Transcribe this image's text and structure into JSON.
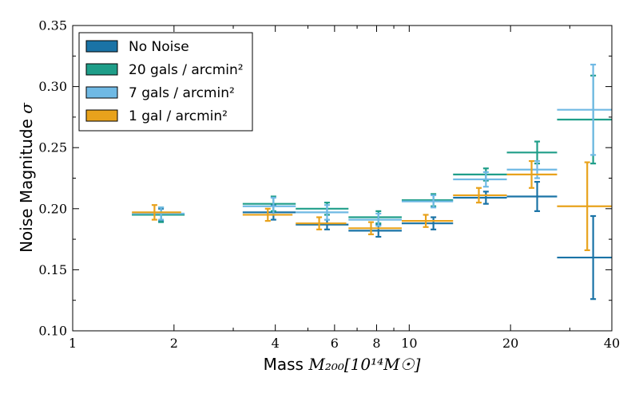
{
  "chart_data": {
    "type": "scatter",
    "title": "",
    "xlabel": "Mass ",
    "xlabel_math": "M₂₀₀[10¹⁴M☉]",
    "ylabel": "Noise Magnitude ",
    "ylabel_math": "σ",
    "xscale": "log",
    "xlim": [
      1,
      40
    ],
    "ylim": [
      0.1,
      0.35
    ],
    "x_ticks": [
      1,
      2,
      4,
      6,
      8,
      10,
      20,
      40
    ],
    "x_tick_labels": [
      "1",
      "2",
      "4",
      "6",
      "8",
      "10",
      "20",
      "40"
    ],
    "y_ticks": [
      0.1,
      0.15,
      0.2,
      0.25,
      0.3,
      0.35
    ],
    "y_tick_labels": [
      "0.10",
      "0.15",
      "0.20",
      "0.25",
      "0.30",
      "0.35"
    ],
    "grid": false,
    "legend_position": "top-left",
    "series": [
      {
        "name": "No Noise",
        "color": "#1a73a6",
        "points": [
          {
            "x": 1.83,
            "xlo": 1.5,
            "xhi": 2.15,
            "y": 0.195,
            "yerr": 0.005
          },
          {
            "x": 3.95,
            "xlo": 3.2,
            "xhi": 4.6,
            "y": 0.197,
            "yerr": 0.006
          },
          {
            "x": 5.7,
            "xlo": 4.6,
            "xhi": 6.6,
            "y": 0.187,
            "yerr": 0.004
          },
          {
            "x": 8.1,
            "xlo": 6.6,
            "xhi": 9.5,
            "y": 0.182,
            "yerr": 0.005
          },
          {
            "x": 11.8,
            "xlo": 9.5,
            "xhi": 13.5,
            "y": 0.188,
            "yerr": 0.005
          },
          {
            "x": 16.9,
            "xlo": 13.5,
            "xhi": 19.5,
            "y": 0.209,
            "yerr": 0.005
          },
          {
            "x": 24.0,
            "xlo": 19.5,
            "xhi": 27.5,
            "y": 0.21,
            "yerr": 0.012
          },
          {
            "x": 35.2,
            "xlo": 27.5,
            "xhi": 40.0,
            "y": 0.16,
            "yerr": 0.034
          }
        ]
      },
      {
        "name": "20 gals / arcmin²",
        "color": "#1f9e89",
        "points": [
          {
            "x": 1.83,
            "xlo": 1.5,
            "xhi": 2.15,
            "y": 0.195,
            "yerr": 0.006
          },
          {
            "x": 3.95,
            "xlo": 3.2,
            "xhi": 4.6,
            "y": 0.204,
            "yerr": 0.006
          },
          {
            "x": 5.7,
            "xlo": 4.6,
            "xhi": 6.6,
            "y": 0.2,
            "yerr": 0.005
          },
          {
            "x": 8.1,
            "xlo": 6.6,
            "xhi": 9.5,
            "y": 0.193,
            "yerr": 0.005
          },
          {
            "x": 11.8,
            "xlo": 9.5,
            "xhi": 13.5,
            "y": 0.207,
            "yerr": 0.005
          },
          {
            "x": 16.9,
            "xlo": 13.5,
            "xhi": 19.5,
            "y": 0.228,
            "yerr": 0.005
          },
          {
            "x": 24.0,
            "xlo": 19.5,
            "xhi": 27.5,
            "y": 0.246,
            "yerr": 0.009
          },
          {
            "x": 35.2,
            "xlo": 27.5,
            "xhi": 40.0,
            "y": 0.273,
            "yerr": 0.036
          }
        ]
      },
      {
        "name": "7 gals / arcmin²",
        "color": "#6fb9e4",
        "points": [
          {
            "x": 1.83,
            "xlo": 1.5,
            "xhi": 2.15,
            "y": 0.196,
            "yerr": 0.005
          },
          {
            "x": 3.95,
            "xlo": 3.2,
            "xhi": 4.6,
            "y": 0.202,
            "yerr": 0.007
          },
          {
            "x": 5.7,
            "xlo": 4.6,
            "xhi": 6.6,
            "y": 0.197,
            "yerr": 0.006
          },
          {
            "x": 8.1,
            "xlo": 6.6,
            "xhi": 9.5,
            "y": 0.191,
            "yerr": 0.005
          },
          {
            "x": 11.8,
            "xlo": 9.5,
            "xhi": 13.5,
            "y": 0.206,
            "yerr": 0.005
          },
          {
            "x": 16.9,
            "xlo": 13.5,
            "xhi": 19.5,
            "y": 0.224,
            "yerr": 0.006
          },
          {
            "x": 24.0,
            "xlo": 19.5,
            "xhi": 27.5,
            "y": 0.232,
            "yerr": 0.007
          },
          {
            "x": 35.2,
            "xlo": 27.5,
            "xhi": 40.0,
            "y": 0.281,
            "yerr": 0.037
          }
        ]
      },
      {
        "name": "1 gal / arcmin²",
        "color": "#e8a21c",
        "points": [
          {
            "x": 1.75,
            "xlo": 1.5,
            "xhi": 2.1,
            "y": 0.197,
            "yerr": 0.006
          },
          {
            "x": 3.8,
            "xlo": 3.2,
            "xhi": 4.5,
            "y": 0.195,
            "yerr": 0.005
          },
          {
            "x": 5.4,
            "xlo": 4.6,
            "xhi": 6.5,
            "y": 0.188,
            "yerr": 0.005
          },
          {
            "x": 7.7,
            "xlo": 6.6,
            "xhi": 9.5,
            "y": 0.184,
            "yerr": 0.005
          },
          {
            "x": 11.2,
            "xlo": 9.5,
            "xhi": 13.5,
            "y": 0.19,
            "yerr": 0.005
          },
          {
            "x": 16.1,
            "xlo": 13.5,
            "xhi": 19.5,
            "y": 0.211,
            "yerr": 0.006
          },
          {
            "x": 23.1,
            "xlo": 19.5,
            "xhi": 27.5,
            "y": 0.228,
            "yerr": 0.011
          },
          {
            "x": 33.8,
            "xlo": 27.5,
            "xhi": 40.0,
            "y": 0.202,
            "yerr": 0.036
          }
        ]
      }
    ]
  }
}
